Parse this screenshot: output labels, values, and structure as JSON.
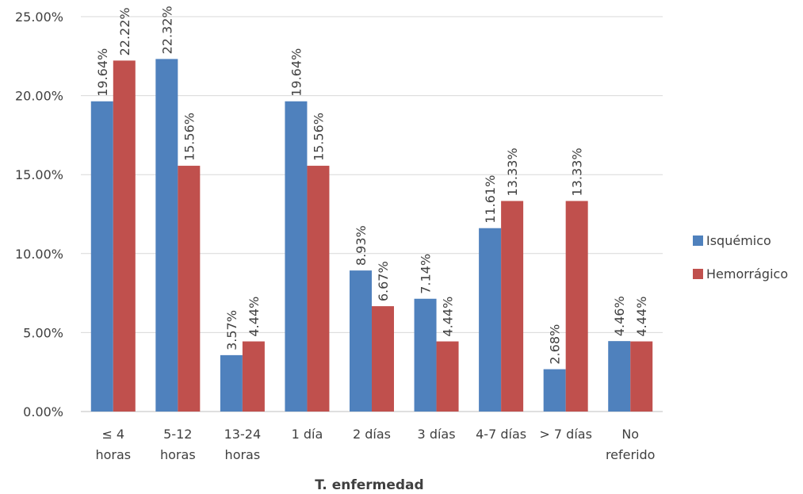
{
  "chart_data": {
    "type": "bar",
    "title": "",
    "xlabel": "T. enfermedad",
    "ylabel": "",
    "ylim": [
      0,
      25
    ],
    "yticks": [
      "0.00%",
      "5.00%",
      "10.00%",
      "15.00%",
      "20.00%",
      "25.00%"
    ],
    "categories": [
      [
        "≤ 4",
        "horas"
      ],
      [
        "5-12",
        "horas"
      ],
      [
        "13-24",
        "horas"
      ],
      [
        "1 día"
      ],
      [
        "2 días"
      ],
      [
        "3 días"
      ],
      [
        "4-7 días"
      ],
      [
        "> 7 días"
      ],
      [
        "No",
        "referido"
      ]
    ],
    "series": [
      {
        "name": "Isquémico",
        "color": "#4f81bd",
        "values": [
          19.64,
          22.32,
          3.57,
          19.64,
          8.93,
          7.14,
          11.61,
          2.68,
          4.46
        ],
        "labels": [
          "19.64%",
          "22.32%",
          "3.57%",
          "19.64%",
          "8.93%",
          "7.14%",
          "11.61%",
          "2.68%",
          "4.46%"
        ]
      },
      {
        "name": "Hemorrágico",
        "color": "#c0504d",
        "values": [
          22.22,
          15.56,
          4.44,
          15.56,
          6.67,
          4.44,
          13.33,
          13.33,
          4.44
        ],
        "labels": [
          "22.22%",
          "15.56%",
          "4.44%",
          "15.56%",
          "6.67%",
          "4.44%",
          "13.33%",
          "13.33%",
          "4.44%"
        ]
      }
    ],
    "grid": true,
    "legend_position": "right"
  }
}
